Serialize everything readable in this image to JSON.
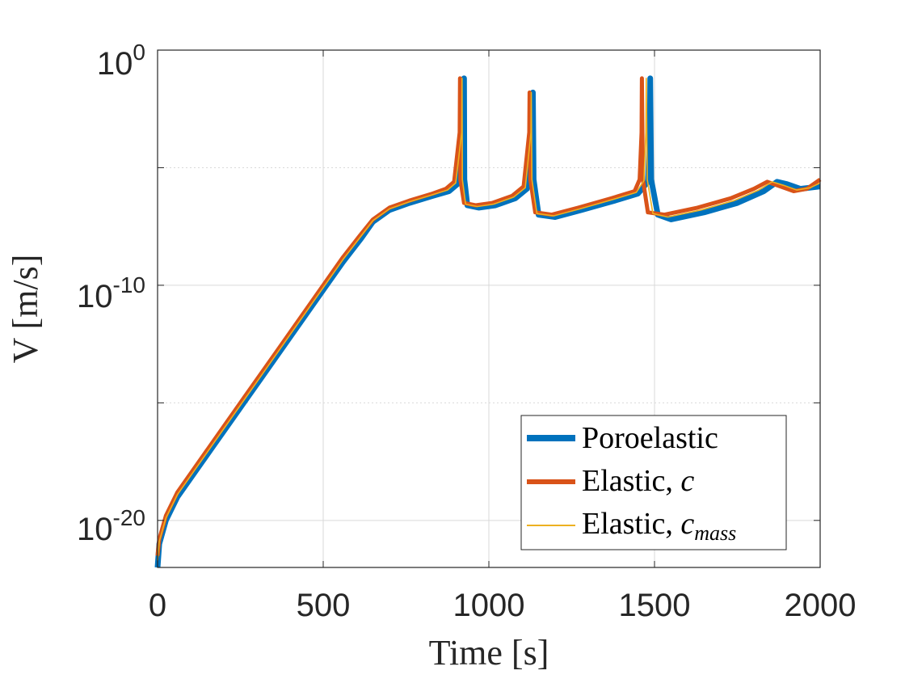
{
  "chart_data": {
    "type": "line",
    "title": "",
    "xlabel": "Time [s]",
    "ylabel": "V [m/s]",
    "xlim": [
      0,
      2000
    ],
    "ylim_log10": [
      -22,
      0
    ],
    "yscale": "log",
    "grid": true,
    "legend_placement": "bottom-right",
    "x_ticks": [
      "0",
      "500",
      "1000",
      "1500",
      "2000"
    ],
    "y_ticks": [
      {
        "base": "10",
        "exp": "0"
      },
      {
        "base": "10",
        "exp": "-10"
      },
      {
        "base": "10",
        "exp": "-20"
      }
    ],
    "legend": [
      {
        "name": "Poroelastic",
        "italic": ""
      },
      {
        "name": "Elastic, ",
        "italic": "c",
        "sub": ""
      },
      {
        "name": "Elastic, ",
        "italic": "c",
        "sub": "mass"
      }
    ],
    "series": [
      {
        "name": "Poroelastic",
        "color": "#0072BD",
        "log10_points": [
          [
            0,
            -22
          ],
          [
            5,
            -21
          ],
          [
            25,
            -20
          ],
          [
            60,
            -19
          ],
          [
            110,
            -18
          ],
          [
            160,
            -17
          ],
          [
            210,
            -16
          ],
          [
            260,
            -15
          ],
          [
            310,
            -14
          ],
          [
            360,
            -13
          ],
          [
            410,
            -12
          ],
          [
            460,
            -11
          ],
          [
            510,
            -10
          ],
          [
            560,
            -9
          ],
          [
            615,
            -8
          ],
          [
            650,
            -7.3
          ],
          [
            700,
            -6.8
          ],
          [
            760,
            -6.5
          ],
          [
            830,
            -6.2
          ],
          [
            880,
            -6.0
          ],
          [
            905,
            -5.7
          ],
          [
            925,
            -3.5
          ],
          [
            925,
            -1.2
          ],
          [
            926,
            -5.5
          ],
          [
            935,
            -6.6
          ],
          [
            970,
            -6.7
          ],
          [
            1020,
            -6.6
          ],
          [
            1080,
            -6.3
          ],
          [
            1115,
            -5.9
          ],
          [
            1132,
            -3.5
          ],
          [
            1133,
            -1.8
          ],
          [
            1135,
            -5.5
          ],
          [
            1150,
            -7.0
          ],
          [
            1200,
            -7.1
          ],
          [
            1280,
            -6.8
          ],
          [
            1380,
            -6.4
          ],
          [
            1450,
            -6.1
          ],
          [
            1480,
            -5.6
          ],
          [
            1486,
            -3.5
          ],
          [
            1487,
            -1.2
          ],
          [
            1490,
            -5.5
          ],
          [
            1510,
            -7.0
          ],
          [
            1550,
            -7.2
          ],
          [
            1650,
            -6.9
          ],
          [
            1750,
            -6.5
          ],
          [
            1830,
            -6.0
          ],
          [
            1870,
            -5.6
          ],
          [
            1900,
            -5.7
          ],
          [
            1940,
            -5.9
          ],
          [
            2000,
            -5.8
          ]
        ]
      },
      {
        "name": "Elastic, c",
        "color": "#D95319",
        "log10_points": [
          [
            0,
            -21.5
          ],
          [
            5,
            -20.8
          ],
          [
            25,
            -19.8
          ],
          [
            60,
            -18.8
          ],
          [
            110,
            -17.8
          ],
          [
            160,
            -16.8
          ],
          [
            210,
            -15.8
          ],
          [
            260,
            -14.8
          ],
          [
            310,
            -13.8
          ],
          [
            360,
            -12.8
          ],
          [
            410,
            -11.8
          ],
          [
            460,
            -10.8
          ],
          [
            510,
            -9.8
          ],
          [
            560,
            -8.8
          ],
          [
            610,
            -7.9
          ],
          [
            650,
            -7.2
          ],
          [
            700,
            -6.7
          ],
          [
            760,
            -6.4
          ],
          [
            830,
            -6.1
          ],
          [
            870,
            -5.9
          ],
          [
            895,
            -5.6
          ],
          [
            912,
            -3.5
          ],
          [
            913,
            -1.2
          ],
          [
            914,
            -5.5
          ],
          [
            925,
            -6.5
          ],
          [
            960,
            -6.6
          ],
          [
            1010,
            -6.5
          ],
          [
            1070,
            -6.2
          ],
          [
            1105,
            -5.8
          ],
          [
            1122,
            -3.5
          ],
          [
            1123,
            -1.8
          ],
          [
            1125,
            -5.5
          ],
          [
            1140,
            -6.9
          ],
          [
            1190,
            -7.0
          ],
          [
            1270,
            -6.7
          ],
          [
            1370,
            -6.3
          ],
          [
            1440,
            -6.0
          ],
          [
            1455,
            -5.5
          ],
          [
            1461,
            -3.5
          ],
          [
            1462,
            -1.2
          ],
          [
            1465,
            -5.5
          ],
          [
            1480,
            -6.9
          ],
          [
            1530,
            -7.0
          ],
          [
            1630,
            -6.7
          ],
          [
            1730,
            -6.3
          ],
          [
            1800,
            -5.9
          ],
          [
            1840,
            -5.6
          ],
          [
            1880,
            -5.8
          ],
          [
            1920,
            -6.0
          ],
          [
            1960,
            -5.9
          ],
          [
            2000,
            -5.5
          ]
        ]
      },
      {
        "name": "Elastic, c_mass",
        "color": "#EDB120",
        "log10_points": [
          [
            0,
            -21.7
          ],
          [
            5,
            -20.9
          ],
          [
            25,
            -19.9
          ],
          [
            60,
            -18.9
          ],
          [
            110,
            -17.9
          ],
          [
            160,
            -16.9
          ],
          [
            210,
            -15.9
          ],
          [
            260,
            -14.9
          ],
          [
            310,
            -13.9
          ],
          [
            360,
            -12.9
          ],
          [
            410,
            -11.9
          ],
          [
            460,
            -10.9
          ],
          [
            510,
            -9.9
          ],
          [
            560,
            -8.9
          ],
          [
            612,
            -7.95
          ],
          [
            650,
            -7.25
          ],
          [
            700,
            -6.75
          ],
          [
            760,
            -6.45
          ],
          [
            830,
            -6.15
          ],
          [
            875,
            -5.95
          ],
          [
            900,
            -5.65
          ],
          [
            918,
            -3.5
          ],
          [
            919,
            -1.2
          ],
          [
            920,
            -5.5
          ],
          [
            930,
            -6.55
          ],
          [
            965,
            -6.65
          ],
          [
            1015,
            -6.55
          ],
          [
            1075,
            -6.25
          ],
          [
            1110,
            -5.85
          ],
          [
            1127,
            -3.5
          ],
          [
            1128,
            -1.8
          ],
          [
            1130,
            -5.5
          ],
          [
            1145,
            -6.95
          ],
          [
            1195,
            -7.05
          ],
          [
            1275,
            -6.75
          ],
          [
            1375,
            -6.35
          ],
          [
            1445,
            -6.05
          ],
          [
            1468,
            -5.55
          ],
          [
            1474,
            -3.5
          ],
          [
            1475,
            -1.2
          ],
          [
            1478,
            -5.5
          ],
          [
            1495,
            -6.95
          ],
          [
            1540,
            -7.1
          ],
          [
            1640,
            -6.8
          ],
          [
            1740,
            -6.4
          ],
          [
            1815,
            -5.95
          ],
          [
            1855,
            -5.6
          ],
          [
            1890,
            -5.75
          ],
          [
            1930,
            -5.95
          ],
          [
            1970,
            -5.85
          ],
          [
            2000,
            -5.65
          ]
        ]
      }
    ]
  }
}
